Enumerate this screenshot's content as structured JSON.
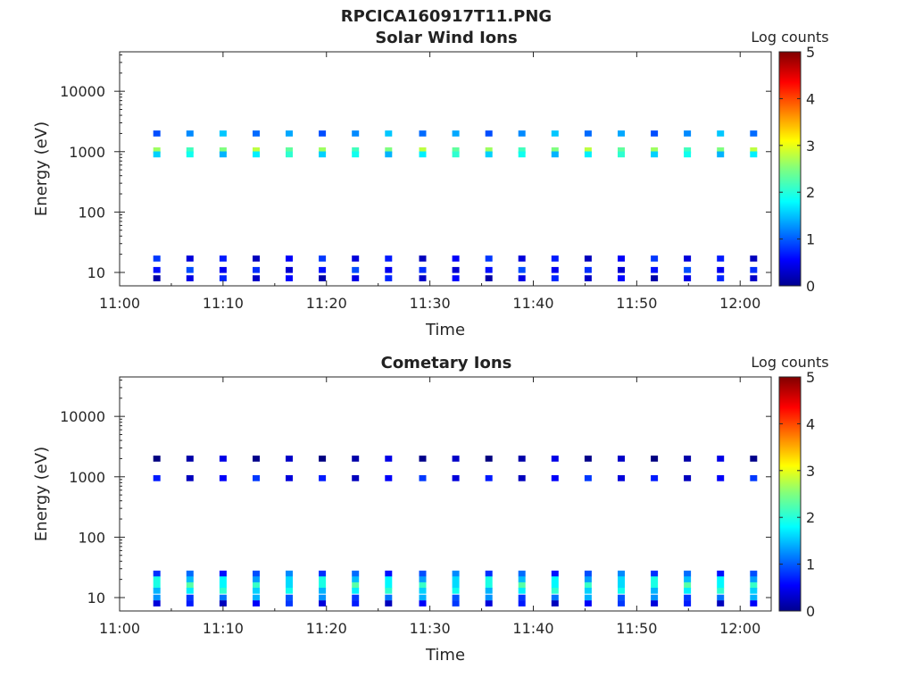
{
  "figure_title": "RPCICA160917T11.PNG",
  "chart_data": [
    {
      "type": "heatmap",
      "title": "Solar Wind Ions",
      "xlabel": "Time",
      "ylabel": "Energy (eV)",
      "x_ticks": [
        "11:00",
        "11:10",
        "11:20",
        "11:30",
        "11:40",
        "11:50",
        "12:00"
      ],
      "x_range_min": [
        0,
        63
      ],
      "y_scale": "log",
      "y_ticks": [
        "10",
        "100",
        "1000",
        "10000"
      ],
      "y_range_ev": [
        6,
        45000
      ],
      "colorbar_label": "Log counts",
      "colorbar_ticks": [
        "0",
        "1",
        "2",
        "3",
        "4",
        "5"
      ],
      "colormap": "jet",
      "sweep_times_min": [
        3.6,
        6.8,
        10.0,
        13.2,
        16.4,
        19.6,
        22.8,
        26.0,
        29.3,
        32.5,
        35.7,
        38.9,
        42.1,
        45.3,
        48.5,
        51.7,
        54.9,
        58.1,
        61.3
      ],
      "bands": [
        {
          "energy_ev": 2000,
          "log_counts": 1.3
        },
        {
          "energy_ev": 1050,
          "log_counts": 2.5
        },
        {
          "energy_ev": 900,
          "log_counts": 1.8
        },
        {
          "energy_ev": 17,
          "log_counts": 0.6
        },
        {
          "energy_ev": 11,
          "log_counts": 0.7
        },
        {
          "energy_ev": 8,
          "log_counts": 0.5
        }
      ]
    },
    {
      "type": "heatmap",
      "title": "Cometary Ions",
      "xlabel": "Time",
      "ylabel": "Energy (eV)",
      "x_ticks": [
        "11:00",
        "11:10",
        "11:20",
        "11:30",
        "11:40",
        "11:50",
        "12:00"
      ],
      "x_range_min": [
        0,
        63
      ],
      "y_scale": "log",
      "y_ticks": [
        "10",
        "100",
        "1000",
        "10000"
      ],
      "y_range_ev": [
        6,
        45000
      ],
      "colorbar_label": "Log counts",
      "colorbar_ticks": [
        "0",
        "1",
        "2",
        "3",
        "4",
        "5"
      ],
      "colormap": "jet",
      "sweep_times_min": [
        3.6,
        6.8,
        10.0,
        13.2,
        16.4,
        19.6,
        22.8,
        26.0,
        29.3,
        32.5,
        35.7,
        38.9,
        42.1,
        45.3,
        48.5,
        51.7,
        54.9,
        58.1,
        61.3
      ],
      "bands": [
        {
          "energy_ev": 2000,
          "log_counts": 0.2
        },
        {
          "energy_ev": 950,
          "log_counts": 0.6
        },
        {
          "energy_ev": 25,
          "log_counts": 1.0
        },
        {
          "energy_ev": 20,
          "log_counts": 1.7
        },
        {
          "energy_ev": 16,
          "log_counts": 2.0
        },
        {
          "energy_ev": 13,
          "log_counts": 1.8
        },
        {
          "energy_ev": 10,
          "log_counts": 1.2
        },
        {
          "energy_ev": 8,
          "log_counts": 0.6
        }
      ]
    }
  ]
}
